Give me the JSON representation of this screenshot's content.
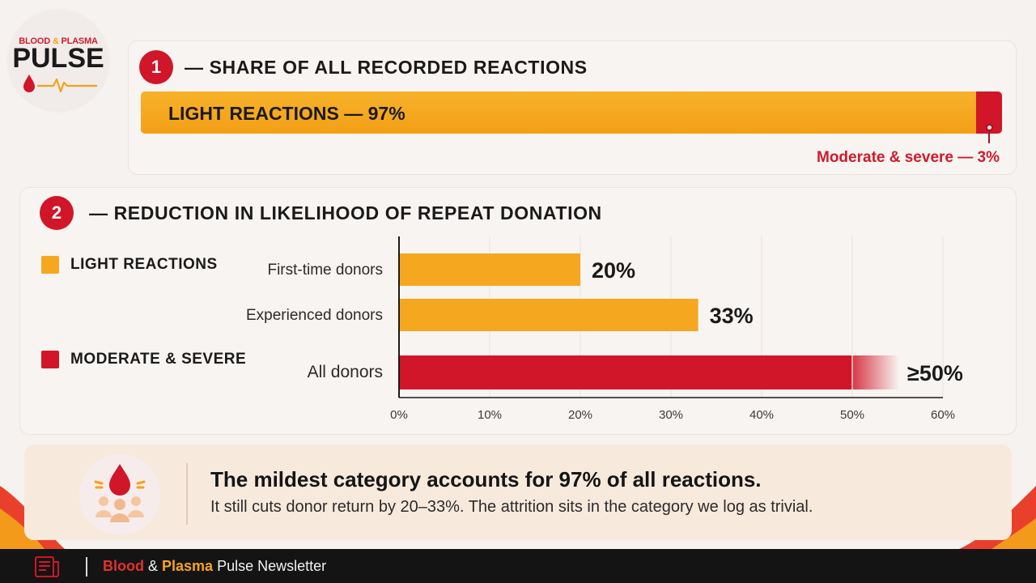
{
  "colors": {
    "light": "#f5a81f",
    "moderate": "#d01628",
    "accent_red": "#cf1a2c"
  },
  "logo": {
    "top_left": "BLOOD",
    "top_amp": "&",
    "top_right": "PLASMA",
    "main": "PULSE"
  },
  "section1": {
    "number": "1",
    "title": "— SHARE OF ALL RECORDED REACTIONS",
    "light_label": "LIGHT REACTIONS — 97%",
    "moderate_label": "Moderate & severe — 3%"
  },
  "section2": {
    "number": "2",
    "title": "— REDUCTION IN LIKELIHOOD OF REPEAT DONATION"
  },
  "legend": [
    {
      "label": "LIGHT REACTIONS",
      "color": "#f5a81f"
    },
    {
      "label": "MODERATE & SEVERE",
      "color": "#d01628"
    }
  ],
  "chart_data": [
    {
      "type": "bar",
      "orientation": "horizontal",
      "title": "SHARE OF ALL RECORDED REACTIONS",
      "categories": [
        "Light reactions",
        "Moderate & severe"
      ],
      "values": [
        97,
        3
      ],
      "unit": "%",
      "stacked": true
    },
    {
      "type": "bar",
      "orientation": "horizontal",
      "title": "REDUCTION IN LIKELIHOOD OF REPEAT DONATION",
      "categories": [
        "First-time donors",
        "Experienced donors",
        "All donors"
      ],
      "values": [
        20,
        33,
        50
      ],
      "value_labels": [
        "20%",
        "33%",
        "≥50%"
      ],
      "series_membership": [
        "LIGHT REACTIONS",
        "LIGHT REACTIONS",
        "MODERATE & SEVERE"
      ],
      "xlim": [
        0,
        60
      ],
      "xticks": [
        0,
        10,
        20,
        30,
        40,
        50,
        60
      ],
      "xtick_labels": [
        "0%",
        "10%",
        "20%",
        "30%",
        "40%",
        "50%",
        "60%"
      ],
      "grid": true,
      "legend_position": "left"
    }
  ],
  "takeaway": {
    "headline": "The mildest category accounts for 97% of all reactions.",
    "subtext": "It still cuts donor return by 20–33%. The attrition sits in the category we log as trivial."
  },
  "footer": {
    "blood": "Blood",
    "amp": " & ",
    "plasma": "Plasma",
    "rest": " Pulse Newsletter"
  }
}
